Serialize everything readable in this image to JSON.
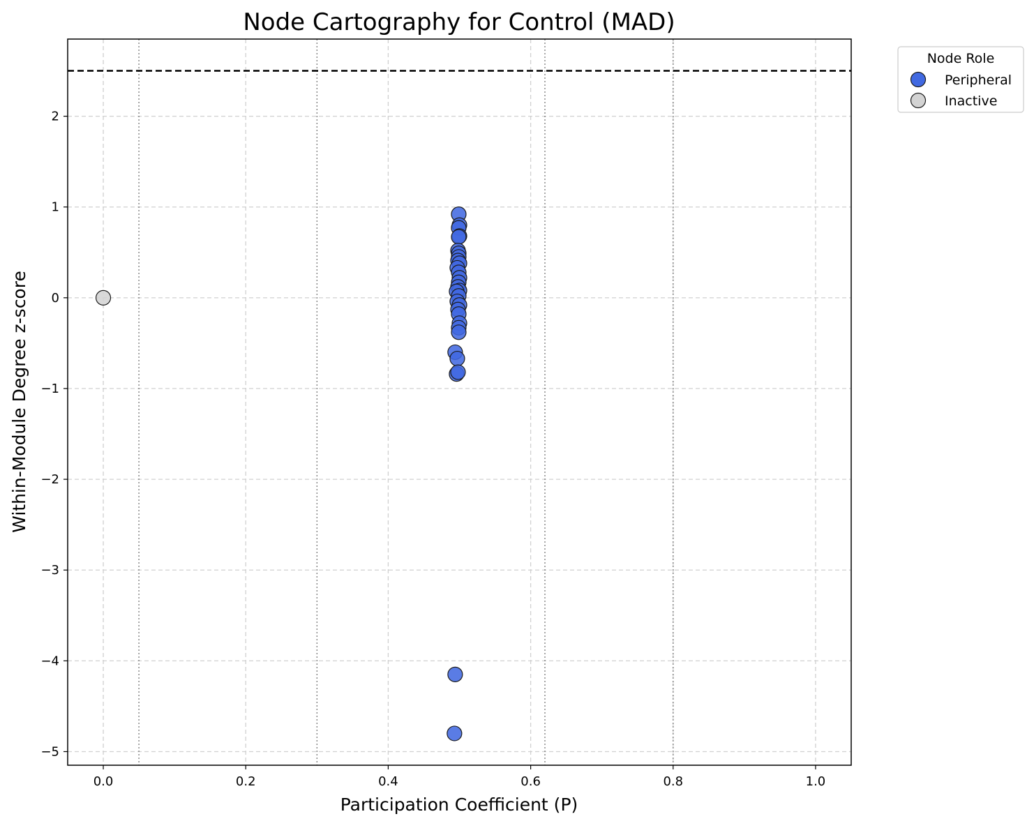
{
  "chart_data": {
    "type": "scatter",
    "title": "Node Cartography for Control (MAD)",
    "xlabel": "Participation Coefficient (P)",
    "ylabel": "Within-Module Degree z-score",
    "xlim": [
      -0.05,
      1.05
    ],
    "ylim": [
      -5.15,
      2.85
    ],
    "x_ticks": [
      {
        "value": 0.0,
        "label": "0.0"
      },
      {
        "value": 0.2,
        "label": "0.2"
      },
      {
        "value": 0.4,
        "label": "0.4"
      },
      {
        "value": 0.6,
        "label": "0.6"
      },
      {
        "value": 0.8,
        "label": "0.8"
      },
      {
        "value": 1.0,
        "label": "1.0"
      }
    ],
    "y_ticks": [
      {
        "value": 2,
        "label": "2"
      },
      {
        "value": 1,
        "label": "1"
      },
      {
        "value": 0,
        "label": "0"
      },
      {
        "value": -1,
        "label": "−1"
      },
      {
        "value": -2,
        "label": "−2"
      },
      {
        "value": -3,
        "label": "−3"
      },
      {
        "value": -4,
        "label": "−4"
      },
      {
        "value": -5,
        "label": "−5"
      }
    ],
    "grid": true,
    "hub_threshold_z": 2.5,
    "role_boundaries_p": [
      0.05,
      0.3,
      0.62,
      0.8
    ],
    "legend": {
      "title": "Node Role",
      "placement": "outside-upper-right",
      "entries": [
        {
          "label": "Peripheral",
          "color": "#4169E1"
        },
        {
          "label": "Inactive",
          "color": "#D3D3D3"
        }
      ]
    },
    "series": [
      {
        "name": "Peripheral",
        "color": "#4169E1",
        "points": [
          {
            "x": 0.499,
            "y": 0.92
          },
          {
            "x": 0.5,
            "y": 0.8
          },
          {
            "x": 0.499,
            "y": 0.77
          },
          {
            "x": 0.5,
            "y": 0.68
          },
          {
            "x": 0.499,
            "y": 0.67
          },
          {
            "x": 0.498,
            "y": 0.52
          },
          {
            "x": 0.499,
            "y": 0.49
          },
          {
            "x": 0.499,
            "y": 0.45
          },
          {
            "x": 0.498,
            "y": 0.41
          },
          {
            "x": 0.5,
            "y": 0.38
          },
          {
            "x": 0.497,
            "y": 0.33
          },
          {
            "x": 0.499,
            "y": 0.28
          },
          {
            "x": 0.5,
            "y": 0.22
          },
          {
            "x": 0.499,
            "y": 0.17
          },
          {
            "x": 0.498,
            "y": 0.12
          },
          {
            "x": 0.5,
            "y": 0.08
          },
          {
            "x": 0.496,
            "y": 0.07
          },
          {
            "x": 0.499,
            "y": 0.02
          },
          {
            "x": 0.497,
            "y": -0.04
          },
          {
            "x": 0.5,
            "y": -0.08
          },
          {
            "x": 0.498,
            "y": -0.13
          },
          {
            "x": 0.499,
            "y": -0.18
          },
          {
            "x": 0.5,
            "y": -0.28
          },
          {
            "x": 0.499,
            "y": -0.33
          },
          {
            "x": 0.499,
            "y": -0.38
          },
          {
            "x": 0.494,
            "y": -0.6
          },
          {
            "x": 0.497,
            "y": -0.67
          },
          {
            "x": 0.496,
            "y": -0.84
          },
          {
            "x": 0.498,
            "y": -0.82
          },
          {
            "x": 0.494,
            "y": -4.15
          },
          {
            "x": 0.493,
            "y": -4.8
          }
        ]
      },
      {
        "name": "Inactive",
        "color": "#D3D3D3",
        "points": [
          {
            "x": 0.0,
            "y": 0.0
          }
        ]
      }
    ]
  }
}
